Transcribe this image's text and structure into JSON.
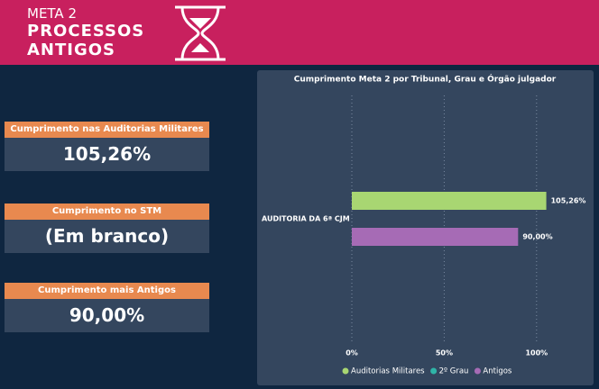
{
  "header": {
    "kicker": "META 2",
    "title_line1": "PROCESSOS",
    "title_line2": "ANTIGOS"
  },
  "cards": [
    {
      "title": "Cumprimento nas Auditorias Militares",
      "value": "105,26%"
    },
    {
      "title": "Cumprimento no STM",
      "value": "(Em branco)"
    },
    {
      "title": "Cumprimento mais Antigos",
      "value": "90,00%"
    }
  ],
  "chart_data": {
    "type": "hbar",
    "title": "Cumprimento Meta 2 por Tribunal, Grau e Órgão julgador",
    "categories": [
      "AUDITORIA DA 6ª CJM"
    ],
    "series": [
      {
        "name": "Auditorias Militares",
        "color": "#a8d672",
        "values": [
          105.26
        ],
        "value_labels": [
          "105,26%"
        ]
      },
      {
        "name": "2º Grau",
        "color": "#2fb5a8",
        "values": [
          null
        ]
      },
      {
        "name": "Antigos",
        "color": "#a66bb5",
        "values": [
          90
        ],
        "value_labels": [
          "90,00%"
        ]
      }
    ],
    "xlim": [
      0,
      125
    ],
    "xticks": [
      {
        "value": 0,
        "label": "0%"
      },
      {
        "value": 50,
        "label": "50%"
      },
      {
        "value": 100,
        "label": "100%"
      }
    ],
    "grid": true,
    "legend": "bottom"
  }
}
